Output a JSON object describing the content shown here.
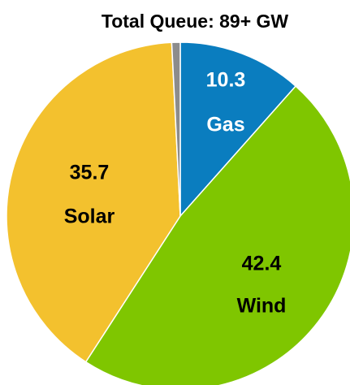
{
  "chart_data": {
    "type": "pie",
    "title": "Total Queue:  89+ GW",
    "categories": [
      "Gas",
      "Wind",
      "Solar",
      null
    ],
    "values": [
      10.3,
      42.4,
      35.7,
      0.7
    ],
    "colors": [
      "#0a7dbf",
      "#7fc600",
      "#f3c12e",
      "#8c8c8c"
    ]
  }
}
